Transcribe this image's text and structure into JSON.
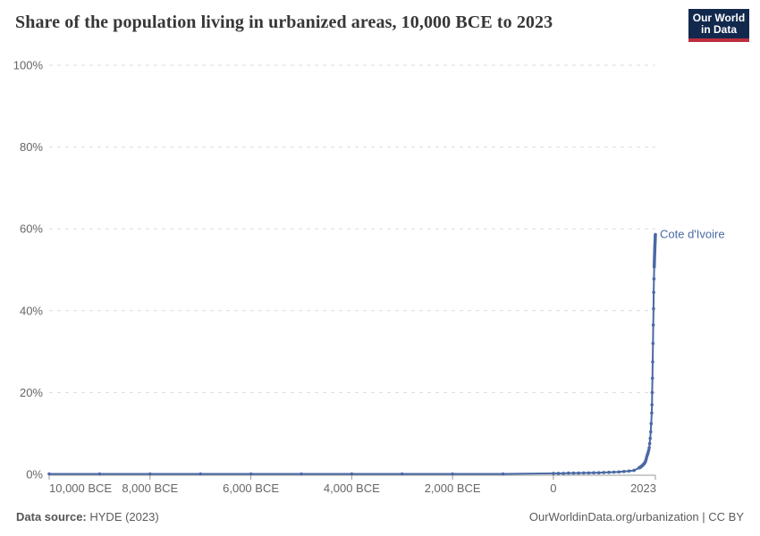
{
  "header": {
    "logo_line1": "Our World",
    "logo_line2": "in Data"
  },
  "footer": {
    "source_label": "Data source:",
    "source_value": "HYDE (2023)",
    "credit": "OurWorldinData.org/urbanization | CC BY"
  },
  "style": {
    "series_color": "#4a69a5",
    "grid_color": "#dcdcdc",
    "axis_color": "#9a9a9a",
    "tick_text_color": "#666666",
    "title_color": "#383636",
    "logo_bg": "#12294d",
    "logo_stripe": "#bc2f3f"
  },
  "chart_data": {
    "type": "line",
    "title": "Share of the population living in urbanized areas, 10,000 BCE to 2023",
    "xlim": [
      -10000,
      2023
    ],
    "ylim": [
      0,
      100
    ],
    "grid": "horizontal-dashed",
    "legend_position": "end-of-line-label",
    "yticks": [
      {
        "value": 0,
        "label": "0%"
      },
      {
        "value": 20,
        "label": "20%"
      },
      {
        "value": 40,
        "label": "40%"
      },
      {
        "value": 60,
        "label": "60%"
      },
      {
        "value": 80,
        "label": "80%"
      },
      {
        "value": 100,
        "label": "100%"
      }
    ],
    "xticks": [
      {
        "year": -10000,
        "label": "10,000 BCE"
      },
      {
        "year": -8000,
        "label": "8,000 BCE"
      },
      {
        "year": -6000,
        "label": "6,000 BCE"
      },
      {
        "year": -4000,
        "label": "4,000 BCE"
      },
      {
        "year": -2000,
        "label": "2,000 BCE"
      },
      {
        "year": 0,
        "label": "0"
      },
      {
        "year": 2023,
        "label": "2023"
      }
    ],
    "series": [
      {
        "name": "Cote d'Ivoire",
        "color": "#4a69a5",
        "points": [
          [
            -10000,
            0.1
          ],
          [
            -9000,
            0.1
          ],
          [
            -8000,
            0.1
          ],
          [
            -7000,
            0.1
          ],
          [
            -6000,
            0.1
          ],
          [
            -5000,
            0.1
          ],
          [
            -4000,
            0.1
          ],
          [
            -3000,
            0.1
          ],
          [
            -2000,
            0.1
          ],
          [
            -1000,
            0.1
          ],
          [
            0,
            0.25
          ],
          [
            100,
            0.25
          ],
          [
            200,
            0.25
          ],
          [
            300,
            0.3
          ],
          [
            400,
            0.3
          ],
          [
            500,
            0.3
          ],
          [
            600,
            0.35
          ],
          [
            700,
            0.35
          ],
          [
            800,
            0.4
          ],
          [
            900,
            0.4
          ],
          [
            1000,
            0.45
          ],
          [
            1100,
            0.5
          ],
          [
            1200,
            0.55
          ],
          [
            1300,
            0.6
          ],
          [
            1400,
            0.7
          ],
          [
            1500,
            0.8
          ],
          [
            1600,
            0.95
          ],
          [
            1700,
            1.6
          ],
          [
            1710,
            1.65
          ],
          [
            1720,
            1.7
          ],
          [
            1730,
            1.8
          ],
          [
            1740,
            1.9
          ],
          [
            1750,
            2.0
          ],
          [
            1760,
            2.1
          ],
          [
            1770,
            2.2
          ],
          [
            1780,
            2.35
          ],
          [
            1790,
            2.5
          ],
          [
            1800,
            2.6
          ],
          [
            1810,
            2.8
          ],
          [
            1820,
            3.0
          ],
          [
            1830,
            3.3
          ],
          [
            1840,
            3.7
          ],
          [
            1850,
            4.2
          ],
          [
            1860,
            4.6
          ],
          [
            1870,
            5.0
          ],
          [
            1880,
            5.4
          ],
          [
            1890,
            5.9
          ],
          [
            1900,
            6.5
          ],
          [
            1910,
            7.5
          ],
          [
            1920,
            8.8
          ],
          [
            1930,
            10.4
          ],
          [
            1940,
            12.4
          ],
          [
            1950,
            15.0
          ],
          [
            1955,
            17.0
          ],
          [
            1960,
            20.0
          ],
          [
            1965,
            23.5
          ],
          [
            1970,
            27.5
          ],
          [
            1975,
            32.0
          ],
          [
            1980,
            36.5
          ],
          [
            1985,
            40.5
          ],
          [
            1990,
            44.5
          ],
          [
            1995,
            47.8
          ],
          [
            2000,
            50.7
          ],
          [
            2001,
            51.1
          ],
          [
            2002,
            51.5
          ],
          [
            2003,
            51.9
          ],
          [
            2004,
            52.3
          ],
          [
            2005,
            52.7
          ],
          [
            2006,
            53.1
          ],
          [
            2007,
            53.5
          ],
          [
            2008,
            53.9
          ],
          [
            2009,
            54.2
          ],
          [
            2010,
            54.6
          ],
          [
            2011,
            55.0
          ],
          [
            2012,
            55.3
          ],
          [
            2013,
            55.7
          ],
          [
            2014,
            56.0
          ],
          [
            2015,
            56.3
          ],
          [
            2016,
            56.6
          ],
          [
            2017,
            56.9
          ],
          [
            2018,
            57.2
          ],
          [
            2019,
            57.5
          ],
          [
            2020,
            57.8
          ],
          [
            2021,
            58.1
          ],
          [
            2022,
            58.35
          ],
          [
            2023,
            58.6
          ]
        ]
      }
    ]
  }
}
